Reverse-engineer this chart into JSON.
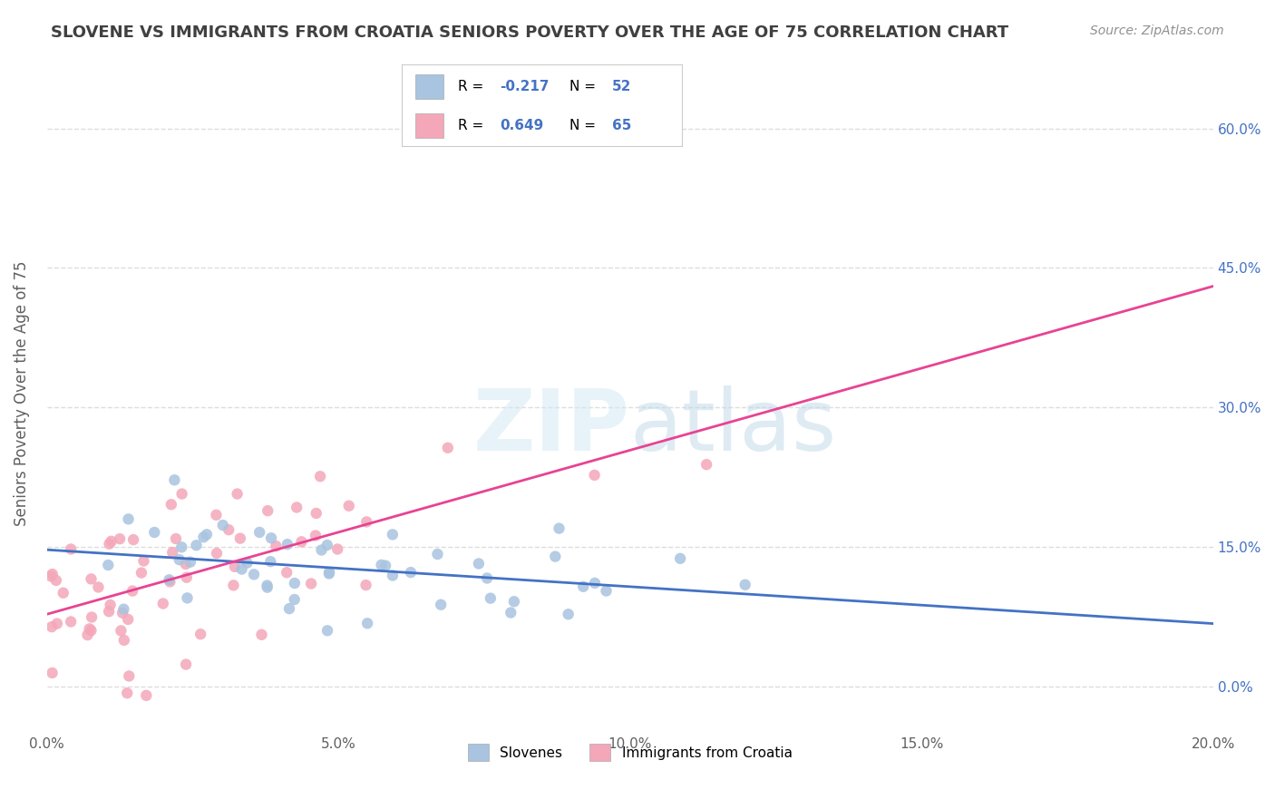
{
  "title": "SLOVENE VS IMMIGRANTS FROM CROATIA SENIORS POVERTY OVER THE AGE OF 75 CORRELATION CHART",
  "source": "Source: ZipAtlas.com",
  "ylabel": "Seniors Poverty Over the Age of 75",
  "xlabel": "",
  "xlim": [
    0.0,
    0.2
  ],
  "ylim": [
    -0.05,
    0.68
  ],
  "yticks": [
    0.0,
    0.15,
    0.3,
    0.45,
    0.6
  ],
  "ytick_labels": [
    "0.0%",
    "15.0%",
    "30.0%",
    "45.0%",
    "60.0%"
  ],
  "xticks": [
    0.0,
    0.05,
    0.1,
    0.15,
    0.2
  ],
  "xtick_labels": [
    "0.0%",
    "5.0%",
    "10.0%",
    "15.0%",
    "20.0%"
  ],
  "blue_R": -0.217,
  "blue_N": 52,
  "pink_R": 0.649,
  "pink_N": 65,
  "blue_color": "#a8c4e0",
  "pink_color": "#f4a7b9",
  "blue_line_color": "#4472c4",
  "pink_line_color": "#e84393",
  "watermark": "ZIPatlas",
  "legend_label_blue": "Slovenes",
  "legend_label_pink": "Immigrants from Croatia",
  "background_color": "#ffffff",
  "grid_color": "#dddddd",
  "title_color": "#404040",
  "axis_label_color": "#606060",
  "right_tick_color": "#4472c4",
  "seed_blue": 42,
  "seed_pink": 7
}
